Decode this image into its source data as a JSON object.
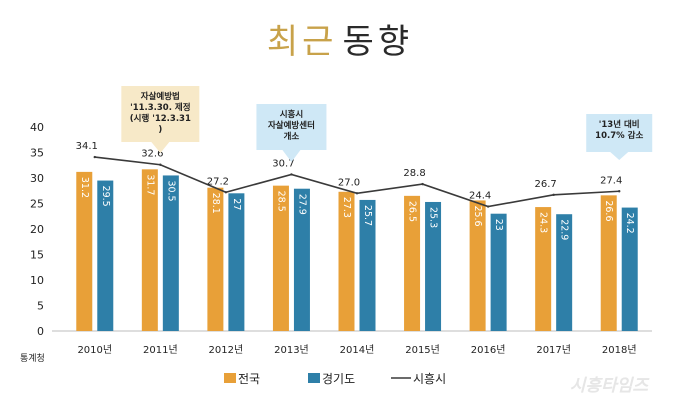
{
  "title": {
    "part1": "최근",
    "part2": "동향"
  },
  "chart_data": {
    "type": "bar",
    "categories": [
      "2010년",
      "2011년",
      "2012년",
      "2013년",
      "2014년",
      "2015년",
      "2016년",
      "2017년",
      "2018년"
    ],
    "series": [
      {
        "name": "전국",
        "type": "bar",
        "color": "#e8a038",
        "values": [
          31.2,
          31.7,
          28.1,
          28.5,
          27.3,
          26.5,
          25.6,
          24.3,
          26.6
        ],
        "labels": [
          "31.2",
          "31.7",
          "28.1",
          "28.5",
          "27.3",
          "26.5",
          "25.6",
          "24.3",
          "26.6"
        ]
      },
      {
        "name": "경기도",
        "type": "bar",
        "color": "#2e7fa8",
        "values": [
          29.5,
          30.5,
          27,
          27.9,
          25.7,
          25.3,
          23,
          22.9,
          24.2
        ],
        "labels": [
          "29.5",
          "30.5",
          "27",
          "27.9",
          "25.7",
          "25.3",
          "23",
          "22.9",
          "24.2"
        ]
      },
      {
        "name": "시흥시",
        "type": "line",
        "color": "#3a3a3a",
        "values": [
          34.1,
          32.6,
          27.2,
          30.7,
          27.0,
          28.8,
          24.4,
          26.7,
          27.4
        ],
        "labels": [
          "34.1",
          "32.6",
          "27.2",
          "30.7",
          "27.0",
          "28.8",
          "24.4",
          "26.7",
          "27.4"
        ]
      }
    ],
    "ylim": [
      0,
      40
    ],
    "yticks": [
      "0",
      "5",
      "10",
      "15",
      "20",
      "25",
      "30",
      "35",
      "40"
    ],
    "grid": false,
    "legend": "bottom",
    "source": "통계청",
    "annotations": [
      {
        "category_index": 1,
        "fill": "#f7e9c8",
        "lines": [
          "자살예방법",
          "'11.3.30. 제정",
          "(시행 '12.3.31",
          ")"
        ]
      },
      {
        "category_index": 3,
        "fill": "#cfe8f6",
        "lines": [
          "시흥시",
          "자살예방센터",
          "개소"
        ]
      },
      {
        "category_index": 8,
        "fill": "#cfe8f6",
        "lines": [
          "'13년 대비",
          "10.7% 감소"
        ]
      }
    ]
  },
  "watermark": "시흥타임즈"
}
